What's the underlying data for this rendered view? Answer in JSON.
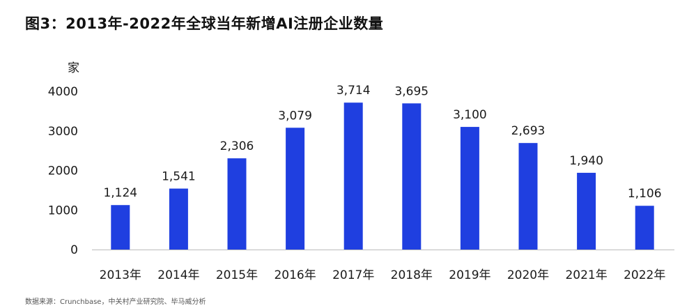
{
  "title": "图3：2013年-2022年全球当年新增AI注册企业数量",
  "source": "数据来源：Crunchbase，中关村产业研究院、毕马威分析",
  "colors": {
    "bar": "#1f3fe0",
    "axis": "#bbbbbb",
    "text": "#1a1a1a"
  },
  "chart_data": {
    "type": "bar",
    "title": "图3：2013年-2022年全球当年新增AI注册企业数量",
    "ylabel": "家",
    "xlabel": "",
    "ylim": [
      0,
      4000
    ],
    "yticks": [
      0,
      1000,
      2000,
      3000,
      4000
    ],
    "grid": false,
    "categories": [
      "2013年",
      "2014年",
      "2015年",
      "2016年",
      "2017年",
      "2018年",
      "2019年",
      "2020年",
      "2021年",
      "2022年"
    ],
    "values": [
      1124,
      1541,
      2306,
      3079,
      3714,
      3695,
      3100,
      2693,
      1940,
      1106
    ],
    "value_labels": [
      "1,124",
      "1,541",
      "2,306",
      "3,079",
      "3,714",
      "3,695",
      "3,100",
      "2,693",
      "1,940",
      "1,106"
    ]
  }
}
